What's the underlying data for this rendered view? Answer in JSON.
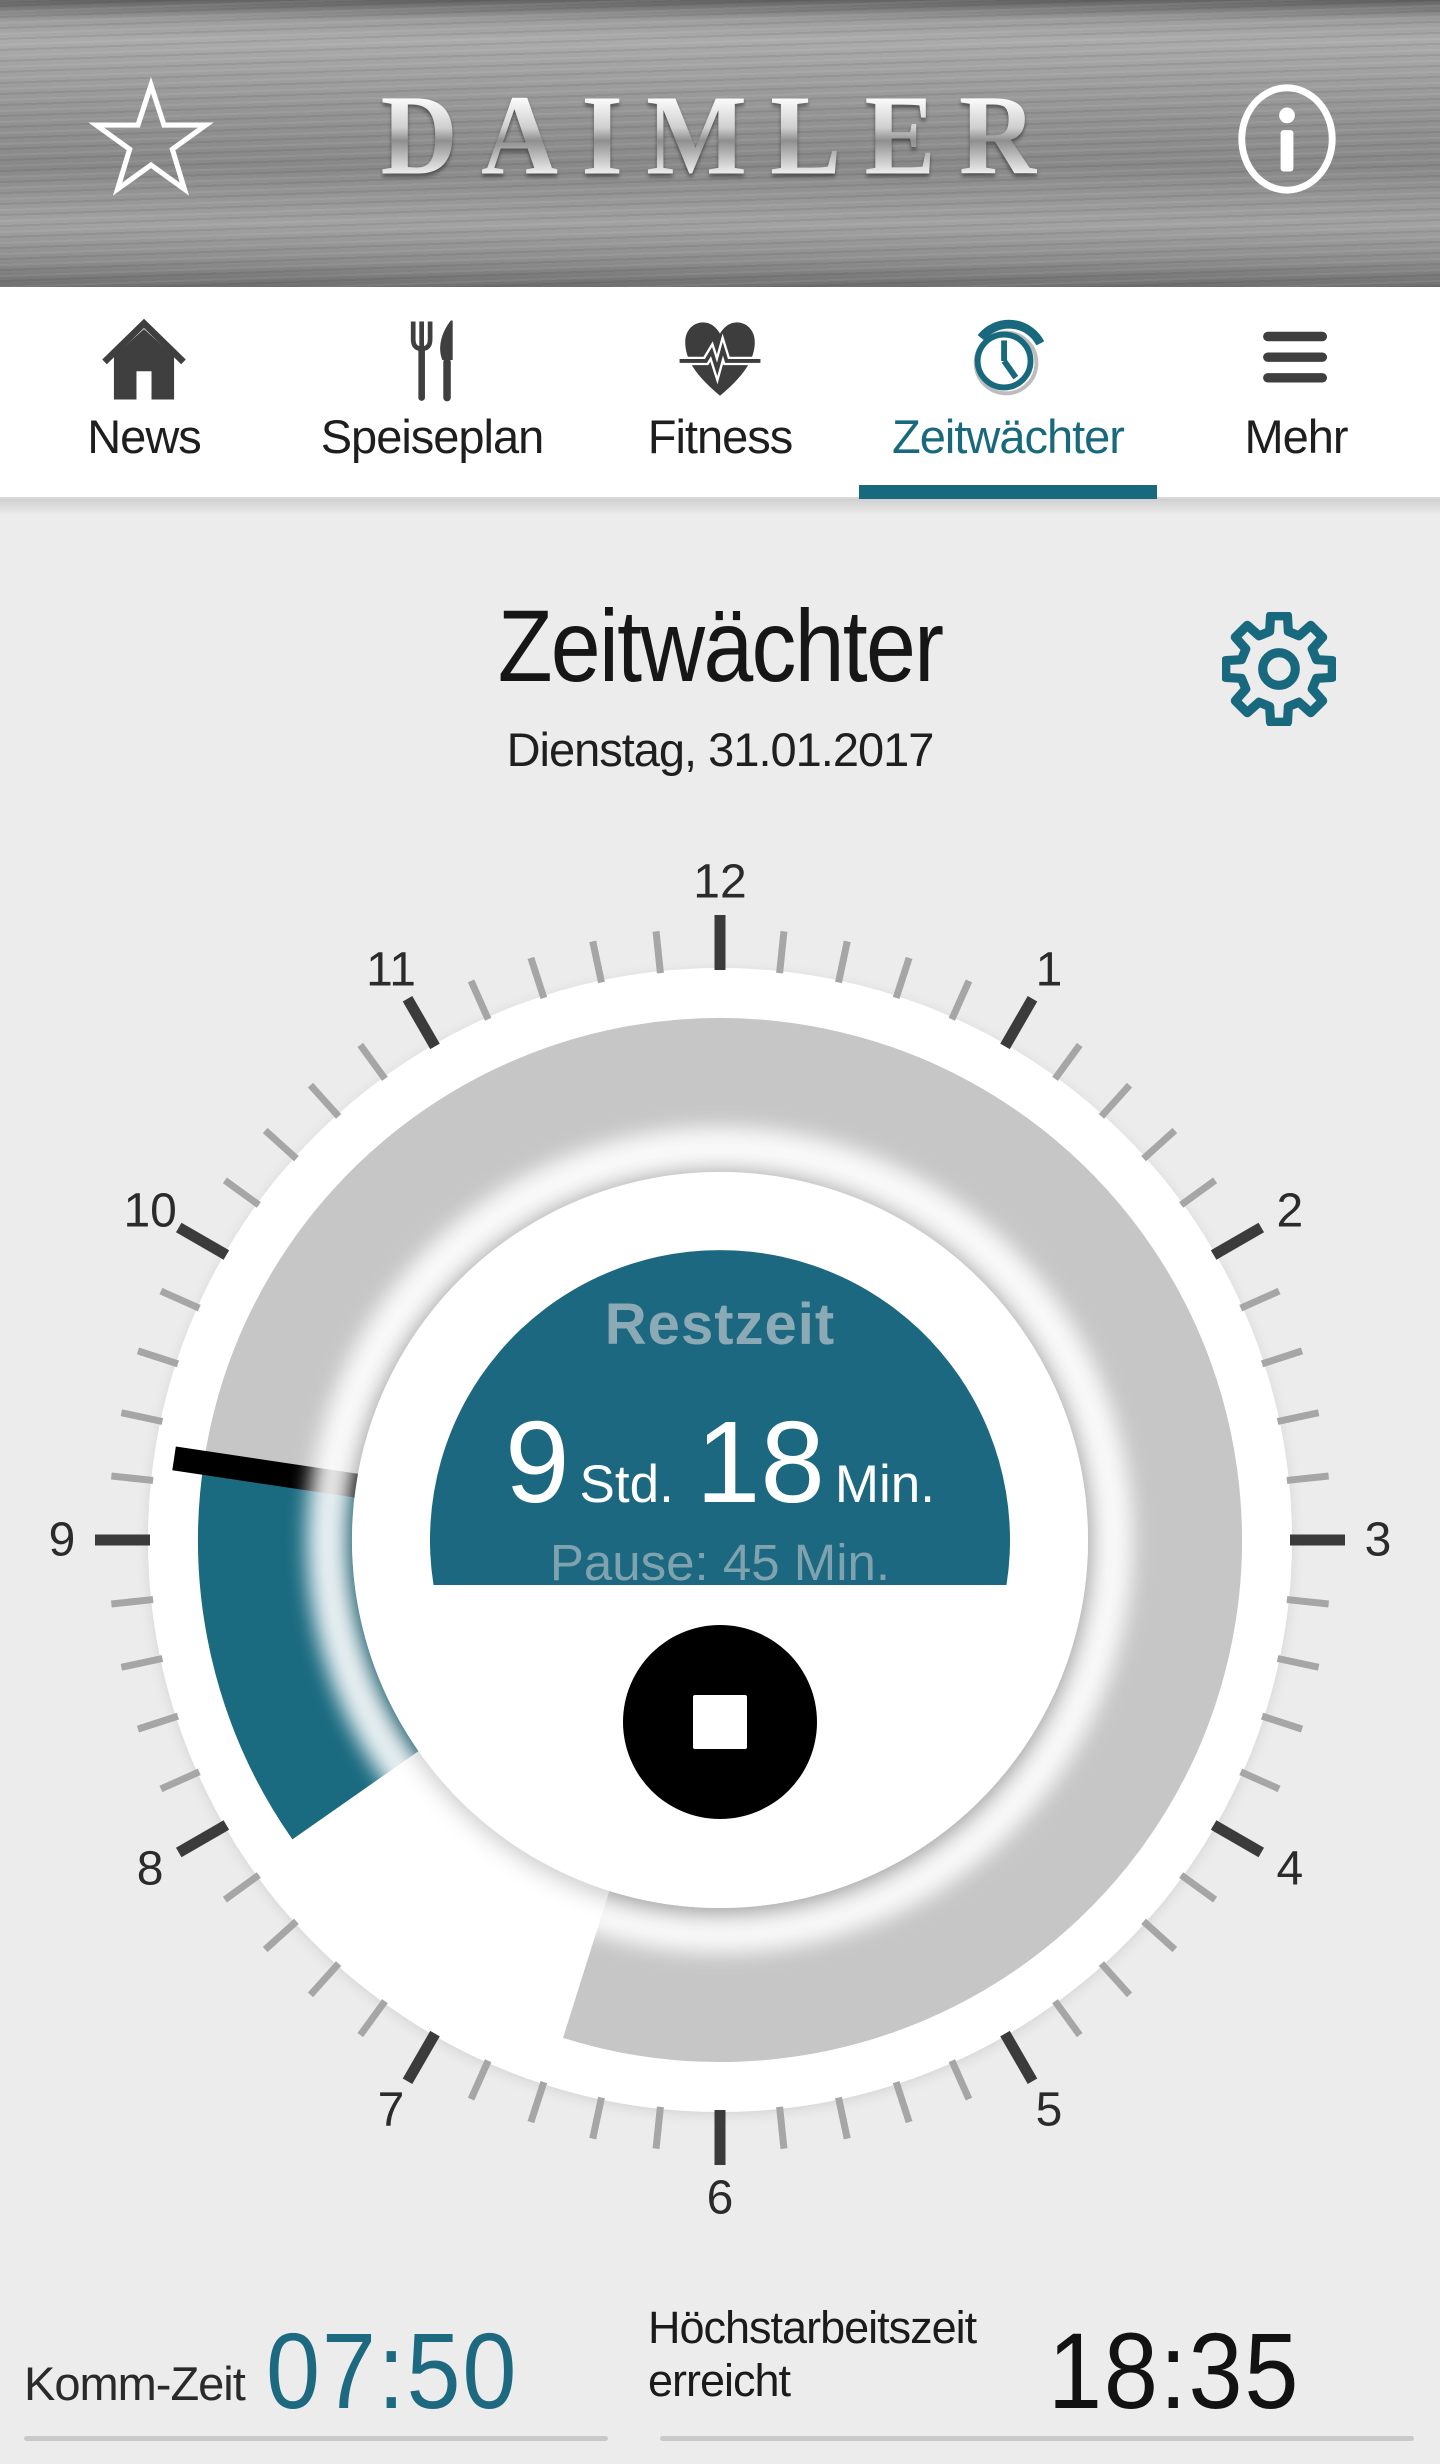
{
  "header": {
    "logo_text": "DAIMLER"
  },
  "nav": {
    "tabs": [
      {
        "id": "news",
        "label": "News",
        "icon": "home-icon",
        "active": false
      },
      {
        "id": "speiseplan",
        "label": "Speiseplan",
        "icon": "utensils-icon",
        "active": false
      },
      {
        "id": "fitness",
        "label": "Fitness",
        "icon": "heart-pulse-icon",
        "active": false
      },
      {
        "id": "zeitwaechter",
        "label": "Zeitwächter",
        "icon": "clock-icon",
        "active": true
      },
      {
        "id": "mehr",
        "label": "Mehr",
        "icon": "menu-icon",
        "active": false
      }
    ]
  },
  "page": {
    "title": "Zeitwächter",
    "date": "Dienstag, 31.01.2017"
  },
  "clock": {
    "center_label": "Restzeit",
    "remaining_hours": "9",
    "remaining_hours_unit": "Std.",
    "remaining_minutes": "18",
    "remaining_minutes_unit": "Min.",
    "pause_text": "Pause: 45 Min.",
    "numbers": [
      "1",
      "2",
      "3",
      "4",
      "5",
      "6",
      "7",
      "8",
      "9",
      "10",
      "11",
      "12"
    ],
    "tick_count": 60,
    "ticks_per_hour": 5,
    "arc": {
      "teal_start_deg": 235,
      "hand_deg": 278.5,
      "gray_end_deg": 197.5
    },
    "colors": {
      "teal": "#1A6A80",
      "gray": "#C6C6C6",
      "hand": "#000000",
      "tick_major": "#3B3B3B",
      "tick_minor": "#A6A6A6",
      "number": "#2B2B2B"
    }
  },
  "footer": {
    "come_label": "Komm-Zeit",
    "come_time": "07:50",
    "max_label_line1": "Höchstarbeitszeit",
    "max_label_line2": "erreicht",
    "max_time": "18:35"
  },
  "colors": {
    "accent_teal": "#1A6A80",
    "background": "#ECECEC"
  }
}
